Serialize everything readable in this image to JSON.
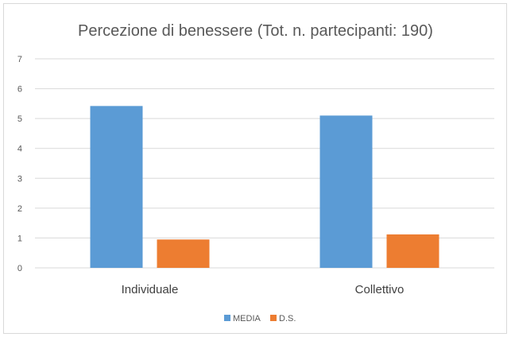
{
  "chart_data": {
    "type": "bar",
    "title": "Percezione di benessere (Tot. n. partecipanti: 190)",
    "categories": [
      "Individuale",
      "Collettivo"
    ],
    "series": [
      {
        "name": "MEDIA",
        "color": "#5b9bd5",
        "values": [
          5.42,
          5.1
        ]
      },
      {
        "name": "D.S.",
        "color": "#ed7d31",
        "values": [
          0.95,
          1.12
        ]
      }
    ],
    "ylim": [
      0,
      7
    ],
    "yticks": [
      "0",
      "1",
      "2",
      "3",
      "4",
      "5",
      "6",
      "7"
    ],
    "grid": true,
    "legend": "bottom"
  }
}
